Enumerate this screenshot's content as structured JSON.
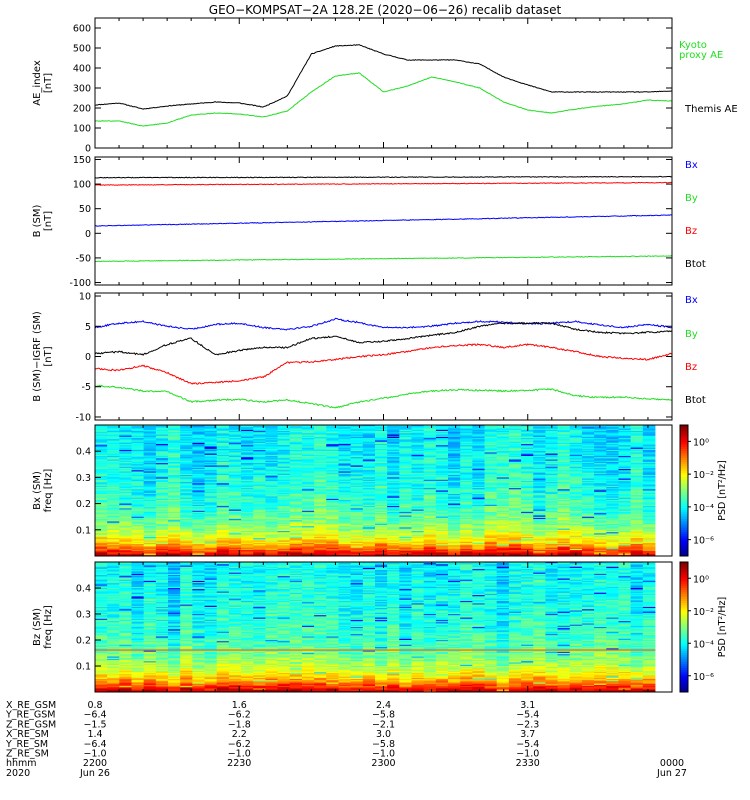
{
  "title": "GEO−KOMPSAT−2A 128.2E (2020−06−26) recalib dataset",
  "colors": {
    "black": "#000000",
    "red": "#ff0000",
    "green": "#22dd22",
    "blue": "#0000ff"
  },
  "chart_data": [
    {
      "type": "line",
      "ylabel": "AE_index\n[nT]",
      "ylim": [
        0,
        650
      ],
      "yticks": [
        0,
        100,
        200,
        300,
        400,
        500,
        600
      ],
      "xlim_minutes": [
        0,
        120
      ],
      "legend_placement": "right",
      "series": [
        {
          "name": "Themis AE",
          "color": "black",
          "x": [
            0,
            5,
            10,
            15,
            20,
            25,
            30,
            35,
            40,
            45,
            50,
            55,
            60,
            65,
            70,
            75,
            80,
            85,
            90,
            95,
            100,
            105,
            110,
            115,
            120
          ],
          "y": [
            215,
            225,
            195,
            210,
            220,
            230,
            225,
            205,
            260,
            470,
            510,
            515,
            470,
            440,
            440,
            440,
            420,
            355,
            315,
            280,
            280,
            280,
            280,
            280,
            285
          ]
        },
        {
          "name": "Kyoto\nproxy AE",
          "color": "green",
          "x": [
            0,
            5,
            10,
            15,
            20,
            25,
            30,
            35,
            40,
            45,
            50,
            55,
            60,
            65,
            70,
            75,
            80,
            85,
            90,
            95,
            100,
            105,
            110,
            115,
            120
          ],
          "y": [
            135,
            135,
            110,
            125,
            165,
            175,
            170,
            155,
            185,
            280,
            360,
            375,
            280,
            310,
            355,
            330,
            300,
            230,
            190,
            175,
            195,
            210,
            220,
            240,
            235
          ]
        }
      ]
    },
    {
      "type": "line",
      "ylabel": "B (SM)\n[nT]",
      "ylim": [
        -105,
        155
      ],
      "yticks": [
        -100,
        -50,
        0,
        50,
        100,
        150
      ],
      "xlim_minutes": [
        0,
        120
      ],
      "legend_placement": "right",
      "series": [
        {
          "name": "Bx",
          "color": "blue",
          "x": [
            0,
            120
          ],
          "y": [
            15,
            37
          ]
        },
        {
          "name": "By",
          "color": "green",
          "x": [
            0,
            120
          ],
          "y": [
            -57,
            -46
          ]
        },
        {
          "name": "Bz",
          "color": "red",
          "x": [
            0,
            120
          ],
          "y": [
            98,
            103
          ]
        },
        {
          "name": "Btot",
          "color": "black",
          "x": [
            0,
            120
          ],
          "y": [
            113,
            115
          ]
        }
      ]
    },
    {
      "type": "line",
      "ylabel": "B (SM)−IGRF (SM)\n[nT]",
      "ylim": [
        -10.5,
        10.5
      ],
      "yticks": [
        -10,
        -5,
        0,
        5,
        10
      ],
      "xlim_minutes": [
        0,
        120
      ],
      "legend_placement": "right",
      "series": [
        {
          "name": "Bx",
          "color": "blue",
          "x": [
            0,
            5,
            10,
            15,
            20,
            25,
            30,
            35,
            40,
            45,
            50,
            55,
            60,
            65,
            70,
            75,
            80,
            85,
            90,
            95,
            100,
            105,
            110,
            115,
            120
          ],
          "y": [
            4.8,
            5.5,
            5.8,
            5.0,
            4.5,
            5.3,
            5.5,
            4.8,
            4.5,
            5.0,
            6.2,
            5.6,
            4.8,
            4.8,
            5.0,
            5.5,
            5.8,
            5.7,
            5.4,
            5.5,
            5.8,
            5.2,
            4.8,
            5.3,
            4.8
          ]
        },
        {
          "name": "By",
          "color": "green",
          "x": [
            0,
            5,
            10,
            15,
            20,
            25,
            30,
            35,
            40,
            45,
            50,
            55,
            60,
            65,
            70,
            75,
            80,
            85,
            90,
            95,
            100,
            105,
            110,
            115,
            120
          ],
          "y": [
            -4.8,
            -5.1,
            -5.7,
            -5.8,
            -7.5,
            -7.2,
            -7.1,
            -7.5,
            -7.2,
            -7.8,
            -8.5,
            -7.5,
            -6.9,
            -6.2,
            -5.7,
            -5.5,
            -5.6,
            -5.7,
            -5.6,
            -5.4,
            -6.5,
            -6.8,
            -6.7,
            -7.0,
            -7.2
          ]
        },
        {
          "name": "Bz",
          "color": "red",
          "x": [
            0,
            5,
            10,
            15,
            20,
            25,
            30,
            35,
            40,
            45,
            50,
            55,
            60,
            65,
            70,
            75,
            80,
            85,
            90,
            95,
            100,
            105,
            110,
            115,
            120
          ],
          "y": [
            -2.0,
            -2.3,
            -1.5,
            -2.7,
            -4.5,
            -4.3,
            -4.0,
            -3.4,
            -1.0,
            -0.9,
            -0.5,
            0.0,
            0.3,
            0.8,
            1.5,
            1.8,
            2.0,
            1.5,
            2.0,
            1.5,
            0.8,
            0.0,
            -0.3,
            -0.5,
            0.5
          ]
        },
        {
          "name": "Btot",
          "color": "black",
          "x": [
            0,
            5,
            10,
            15,
            20,
            25,
            30,
            35,
            40,
            45,
            50,
            55,
            60,
            65,
            70,
            75,
            80,
            85,
            90,
            95,
            100,
            105,
            110,
            115,
            120
          ],
          "y": [
            0.5,
            0.8,
            0.3,
            2.0,
            3.0,
            0.3,
            1.0,
            1.5,
            1.5,
            3.0,
            3.3,
            2.3,
            2.5,
            3.0,
            3.5,
            4.0,
            5.0,
            5.5,
            5.5,
            5.5,
            4.5,
            4.0,
            3.8,
            4.0,
            4.2
          ]
        }
      ]
    },
    {
      "type": "heatmap",
      "ylabel": "Bx (SM)\nfreq [Hz]",
      "ylim": [
        0,
        0.5
      ],
      "yticks": [
        0.1,
        0.2,
        0.3,
        0.4
      ],
      "xlim_minutes": [
        0,
        120
      ],
      "colorbar_label": "PSD [nT²/Hz]",
      "colorbar_ticks": [
        "10⁰",
        "10⁻²",
        "10⁻⁴",
        "10⁻⁶"
      ],
      "colorbar_range_log10": [
        -7,
        1
      ]
    },
    {
      "type": "heatmap",
      "ylabel": "Bz (SM)\nfreq [Hz]",
      "ylim": [
        0,
        0.5
      ],
      "yticks": [
        0.1,
        0.2,
        0.3,
        0.4
      ],
      "xlim_minutes": [
        0,
        120
      ],
      "colorbar_label": "PSD [nT²/Hz]",
      "colorbar_ticks": [
        "10⁰",
        "10⁻²",
        "10⁻⁴",
        "10⁻⁶"
      ],
      "colorbar_range_log10": [
        -7,
        1
      ]
    }
  ],
  "ephemeris": {
    "tick_minutes": [
      0,
      30,
      60,
      90,
      120
    ],
    "rows": [
      {
        "label": "X_RE_GSM",
        "values": [
          "0.8",
          "1.6",
          "2.4",
          "3.1",
          ""
        ]
      },
      {
        "label": "Y_RE_GSM",
        "values": [
          "−6.4",
          "−6.2",
          "−5.8",
          "−5.4",
          ""
        ]
      },
      {
        "label": "Z_RE_GSM",
        "values": [
          "−1.5",
          "−1.8",
          "−2.1",
          "−2.3",
          ""
        ]
      },
      {
        "label": "X_RE_SM",
        "values": [
          "1.4",
          "2.2",
          "3.0",
          "3.7",
          ""
        ]
      },
      {
        "label": "Y_RE_SM",
        "values": [
          "−6.4",
          "−6.2",
          "−5.8",
          "−5.4",
          ""
        ]
      },
      {
        "label": "Z_RE_SM",
        "values": [
          "−1.0",
          "−1.0",
          "−1.0",
          "−1.0",
          ""
        ]
      },
      {
        "label": "hhmm",
        "values": [
          "2200",
          "2230",
          "2300",
          "2330",
          "0000"
        ]
      },
      {
        "label": "2020",
        "values": [
          "Jun 26",
          "",
          "",
          "",
          "Jun 27"
        ]
      }
    ]
  }
}
